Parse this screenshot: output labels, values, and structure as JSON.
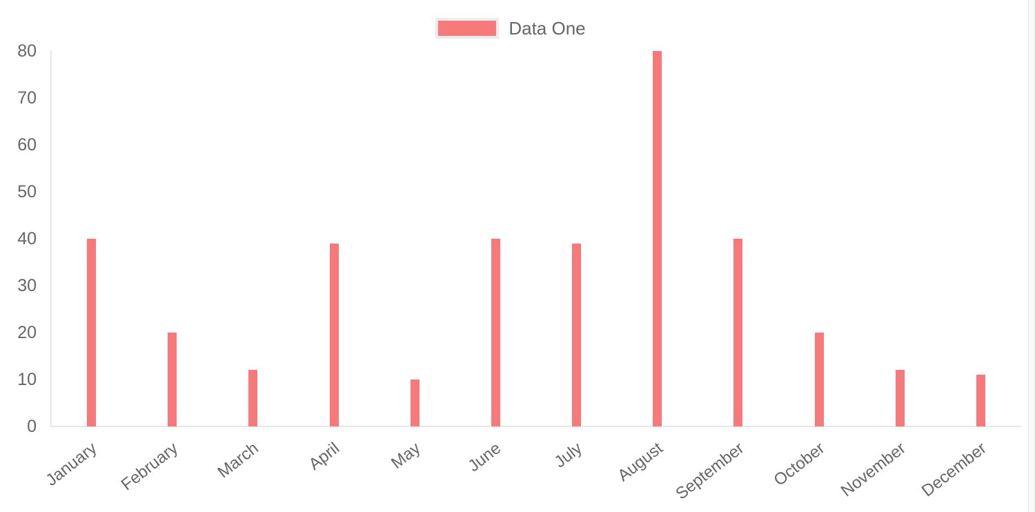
{
  "chart_data": {
    "type": "bar",
    "title": "",
    "xlabel": "",
    "ylabel": "",
    "categories": [
      "January",
      "February",
      "March",
      "April",
      "May",
      "June",
      "July",
      "August",
      "September",
      "October",
      "November",
      "December"
    ],
    "series": [
      {
        "name": "Data One",
        "color": "#f87979",
        "values": [
          40,
          20,
          12,
          39,
          10,
          40,
          39,
          80,
          40,
          20,
          12,
          11
        ]
      }
    ],
    "ylim": [
      0,
      80
    ],
    "y_ticks": [
      0,
      10,
      20,
      30,
      40,
      50,
      60,
      70,
      80
    ],
    "grid": false,
    "legend_position": "top",
    "x_label_rotation_deg": -38,
    "axis_color": "#e7e7e7",
    "tick_label_color": "#666666",
    "legend_swatch_border_color": "#ececec"
  }
}
